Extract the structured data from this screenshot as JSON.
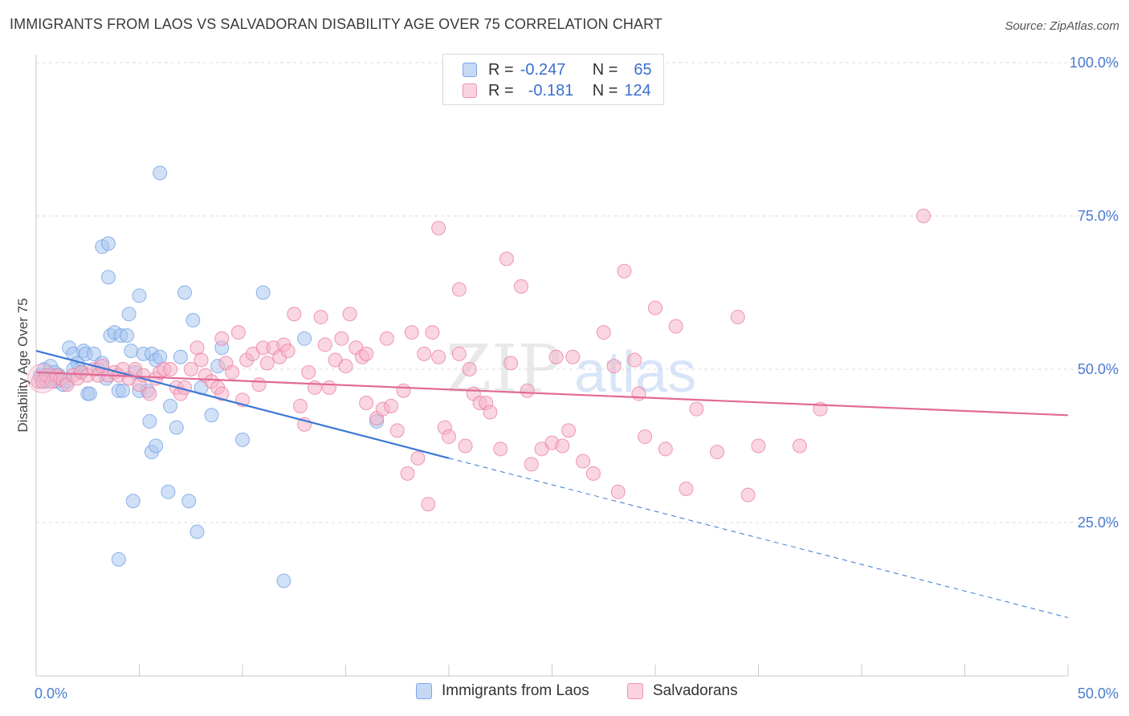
{
  "header": {
    "title": "IMMIGRANTS FROM LAOS VS SALVADORAN DISABILITY AGE OVER 75 CORRELATION CHART",
    "source": "Source: ZipAtlas.com"
  },
  "legend": {
    "rows": [
      {
        "r_label": "R =",
        "r_value": "-0.247",
        "n_label": "N =",
        "n_value": "65",
        "color": "#a9c6f0"
      },
      {
        "r_label": "R =",
        "r_value": "-0.181",
        "n_label": "N =",
        "n_value": "124",
        "color": "#f6b5c8"
      }
    ]
  },
  "bottom_legend": [
    {
      "label": "Immigrants from Laos",
      "color": "#a9c6f0"
    },
    {
      "label": "Salvadorans",
      "color": "#f6b5c8"
    }
  ],
  "watermark": {
    "zip": "ZIP",
    "atlas": "atlas"
  },
  "chart_data": {
    "type": "scatter",
    "title": "IMMIGRANTS FROM LAOS VS SALVADORAN DISABILITY AGE OVER 75 CORRELATION CHART",
    "xlabel": "",
    "ylabel": "Disability Age Over 75",
    "xlim": [
      0,
      50
    ],
    "ylim": [
      0,
      100
    ],
    "x_tick_labels": [
      "0.0%",
      "50.0%"
    ],
    "y_tick_labels": [
      "25.0%",
      "50.0%",
      "75.0%",
      "100.0%"
    ],
    "y_ticks": [
      25,
      50,
      75,
      100
    ],
    "grid": true,
    "legend_position": "top-center",
    "series": [
      {
        "name": "Immigrants from Laos",
        "color": "#6f9ee3",
        "fill": "#a9c6f0",
        "r": -0.247,
        "n": 65,
        "trend": {
          "x0": 0,
          "y0": 53,
          "x1": 20,
          "y1": 35.5,
          "dash_to_x": 50,
          "dash_to_y": 9.5
        },
        "points": [
          [
            0.2,
            49
          ],
          [
            0.3,
            48
          ],
          [
            0.4,
            50
          ],
          [
            0.5,
            48
          ],
          [
            0.6,
            49
          ],
          [
            0.7,
            50.5
          ],
          [
            0.8,
            49
          ],
          [
            0.9,
            49.5
          ],
          [
            1.0,
            48
          ],
          [
            1.1,
            49
          ],
          [
            1.2,
            48.5
          ],
          [
            1.3,
            47.5
          ],
          [
            1.5,
            48
          ],
          [
            1.6,
            53.5
          ],
          [
            1.8,
            52.5
          ],
          [
            2.0,
            51
          ],
          [
            2.1,
            50
          ],
          [
            2.2,
            49.5
          ],
          [
            2.3,
            53
          ],
          [
            2.4,
            52.5
          ],
          [
            2.5,
            46
          ],
          [
            2.6,
            46
          ],
          [
            2.8,
            52.5
          ],
          [
            3.0,
            50
          ],
          [
            3.2,
            51
          ],
          [
            3.4,
            48.5
          ],
          [
            3.6,
            55.5
          ],
          [
            3.8,
            56
          ],
          [
            4.0,
            46.5
          ],
          [
            4.1,
            55.5
          ],
          [
            4.2,
            46.5
          ],
          [
            4.4,
            55.5
          ],
          [
            4.6,
            53
          ],
          [
            4.8,
            49.5
          ],
          [
            5.0,
            46.5
          ],
          [
            5.2,
            52.5
          ],
          [
            5.4,
            46.5
          ],
          [
            5.6,
            52.5
          ],
          [
            5.8,
            51.5
          ],
          [
            6.0,
            52
          ],
          [
            1.8,
            50
          ],
          [
            3.2,
            70
          ],
          [
            3.5,
            65
          ],
          [
            3.5,
            70.5
          ],
          [
            4.5,
            59
          ],
          [
            5.0,
            62
          ],
          [
            5.5,
            41.5
          ],
          [
            5.6,
            36.5
          ],
          [
            5.8,
            37.5
          ],
          [
            4.7,
            28.5
          ],
          [
            4.0,
            19
          ],
          [
            6.0,
            82
          ],
          [
            6.5,
            44
          ],
          [
            6.4,
            30
          ],
          [
            6.8,
            40.5
          ],
          [
            7.0,
            52
          ],
          [
            7.2,
            62.5
          ],
          [
            7.4,
            28.5
          ],
          [
            7.6,
            58
          ],
          [
            7.8,
            23.5
          ],
          [
            8.0,
            47
          ],
          [
            8.5,
            42.5
          ],
          [
            8.8,
            50.5
          ],
          [
            9.0,
            53.5
          ],
          [
            10.0,
            38.5
          ]
        ],
        "extra_points": [
          [
            11.0,
            62.5
          ],
          [
            12.0,
            15.5
          ],
          [
            13.0,
            55
          ],
          [
            16.5,
            41.5
          ]
        ]
      },
      {
        "name": "Salvadorans",
        "color": "#e87aa0",
        "fill": "#f6b5c8",
        "r": -0.181,
        "n": 124,
        "trend": {
          "x0": 0,
          "y0": 49.5,
          "x1": 50,
          "y1": 42.5
        },
        "points": [
          [
            0.1,
            48
          ],
          [
            0.3,
            48
          ],
          [
            0.5,
            49
          ],
          [
            0.8,
            48
          ],
          [
            1.0,
            49
          ],
          [
            1.2,
            48.5
          ],
          [
            1.5,
            47.5
          ],
          [
            1.8,
            49
          ],
          [
            2.0,
            48.5
          ],
          [
            2.2,
            49.5
          ],
          [
            2.5,
            49
          ],
          [
            2.8,
            50
          ],
          [
            3.0,
            49
          ],
          [
            3.2,
            50.5
          ],
          [
            3.5,
            49
          ],
          [
            3.8,
            49.5
          ],
          [
            4.0,
            49
          ],
          [
            4.2,
            50
          ],
          [
            4.5,
            48.5
          ],
          [
            4.8,
            50
          ],
          [
            5.0,
            47.5
          ],
          [
            5.2,
            49
          ],
          [
            5.5,
            46
          ],
          [
            5.8,
            48.5
          ],
          [
            6.0,
            49.5
          ],
          [
            6.2,
            50
          ],
          [
            6.5,
            50
          ],
          [
            6.8,
            47
          ],
          [
            7.0,
            46
          ],
          [
            7.2,
            47
          ],
          [
            7.5,
            50
          ],
          [
            7.8,
            53.5
          ],
          [
            8.0,
            51.5
          ],
          [
            8.2,
            49
          ],
          [
            8.5,
            48
          ],
          [
            8.8,
            47
          ],
          [
            9.0,
            46
          ],
          [
            9.2,
            51
          ],
          [
            9.5,
            49.5
          ],
          [
            9.8,
            56
          ],
          [
            10.0,
            45
          ],
          [
            10.2,
            51.5
          ],
          [
            10.5,
            52.5
          ],
          [
            10.8,
            47.5
          ],
          [
            11.0,
            53.5
          ],
          [
            11.2,
            51
          ],
          [
            11.5,
            53.5
          ],
          [
            11.8,
            52
          ],
          [
            12.0,
            54
          ],
          [
            12.2,
            53
          ],
          [
            12.5,
            59
          ],
          [
            12.8,
            44
          ],
          [
            13.0,
            41
          ],
          [
            13.2,
            49.5
          ],
          [
            13.5,
            47
          ],
          [
            13.8,
            58.5
          ],
          [
            14.0,
            54
          ],
          [
            14.2,
            47
          ],
          [
            14.5,
            51.5
          ],
          [
            14.8,
            55
          ],
          [
            15.0,
            50.5
          ],
          [
            15.2,
            59
          ],
          [
            15.5,
            53.5
          ],
          [
            15.8,
            52
          ],
          [
            16.0,
            52.5
          ],
          [
            16.5,
            42
          ],
          [
            16.8,
            43.5
          ],
          [
            17.0,
            55
          ],
          [
            17.2,
            44
          ],
          [
            17.5,
            40
          ],
          [
            17.8,
            46.5
          ],
          [
            18.0,
            33
          ],
          [
            18.2,
            56
          ],
          [
            18.5,
            35.5
          ],
          [
            18.8,
            52.5
          ],
          [
            19.0,
            28
          ],
          [
            19.2,
            56
          ],
          [
            19.5,
            52
          ],
          [
            19.8,
            40.5
          ],
          [
            20.0,
            39
          ],
          [
            20.5,
            52.5
          ],
          [
            20.8,
            37.5
          ],
          [
            21.0,
            50
          ],
          [
            21.2,
            46
          ],
          [
            21.5,
            44.5
          ],
          [
            21.8,
            44.5
          ],
          [
            22.0,
            43
          ],
          [
            22.5,
            37
          ],
          [
            22.8,
            68
          ],
          [
            23.0,
            51
          ],
          [
            23.5,
            63.5
          ],
          [
            23.8,
            46.5
          ],
          [
            24.0,
            34.5
          ],
          [
            24.5,
            37
          ],
          [
            25.0,
            38
          ],
          [
            25.2,
            52
          ],
          [
            25.5,
            37.5
          ],
          [
            25.8,
            40
          ],
          [
            26.0,
            52
          ],
          [
            26.5,
            35
          ],
          [
            27.0,
            33
          ],
          [
            27.5,
            56
          ],
          [
            28.0,
            50.5
          ],
          [
            28.2,
            30
          ],
          [
            28.5,
            66
          ],
          [
            29.0,
            51.5
          ],
          [
            29.2,
            46
          ],
          [
            29.5,
            39
          ],
          [
            30.0,
            60
          ],
          [
            30.5,
            37
          ],
          [
            31.0,
            57
          ],
          [
            31.5,
            30.5
          ],
          [
            32.0,
            43.5
          ],
          [
            33.0,
            36.5
          ],
          [
            34.0,
            58.5
          ],
          [
            34.5,
            29.5
          ],
          [
            35.0,
            37.5
          ],
          [
            37.0,
            37.5
          ],
          [
            38.0,
            43.5
          ],
          [
            43.0,
            75
          ],
          [
            19.5,
            73
          ],
          [
            20.5,
            63
          ],
          [
            16.0,
            44.5
          ],
          [
            9.0,
            55
          ]
        ]
      }
    ]
  }
}
